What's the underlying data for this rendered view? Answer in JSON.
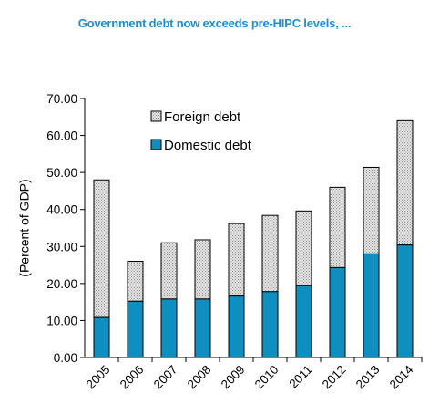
{
  "chart_data": {
    "type": "bar",
    "stacked": true,
    "title": "Government debt now exceeds pre-HIPC levels, ...",
    "ylabel": "(Percent of GDP)",
    "xlabel": "",
    "ylim": [
      0,
      70
    ],
    "yticks": [
      "0.00",
      "10.00",
      "20.00",
      "30.00",
      "40.00",
      "50.00",
      "60.00",
      "70.00"
    ],
    "categories": [
      "2005",
      "2006",
      "2007",
      "2008",
      "2009",
      "2010",
      "2011",
      "2012",
      "2013",
      "2014"
    ],
    "series": [
      {
        "name": "Domestic debt",
        "color": "#0e8fbf",
        "values": [
          10.8,
          15.2,
          15.8,
          15.8,
          16.6,
          17.8,
          19.4,
          24.3,
          28.0,
          30.4
        ]
      },
      {
        "name": "Foreign debt",
        "color": "#d4d4d4",
        "pattern": "dotted",
        "values": [
          37.2,
          10.8,
          15.2,
          16.0,
          19.6,
          20.6,
          20.2,
          21.7,
          23.4,
          33.6
        ]
      }
    ],
    "legend": [
      {
        "label": "Foreign debt"
      },
      {
        "label": "Domestic debt"
      }
    ],
    "legend_position": "top-left",
    "grid": false
  }
}
